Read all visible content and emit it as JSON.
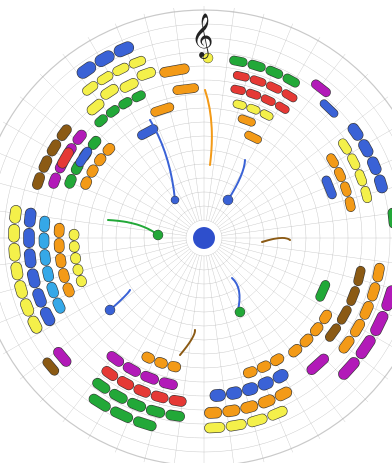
{
  "figure": {
    "kind": "circular-score-artwork",
    "center_icon": "blue-dot-center",
    "top_symbol": "treble-clef-icon",
    "grid": {
      "rings": true,
      "radial_lines": true,
      "style": "light-gray"
    }
  },
  "palette": {
    "blue": "#3A62D6",
    "light_blue": "#35A8E8",
    "yellow": "#F4F04A",
    "orange": "#F39A17",
    "green": "#22A838",
    "red": "#E53935",
    "magenta": "#B21AB8",
    "brown": "#8B5A14",
    "pink": "#F4A6C8",
    "navy_center": "#2E4FCC",
    "grid": "#B8B8B8"
  }
}
